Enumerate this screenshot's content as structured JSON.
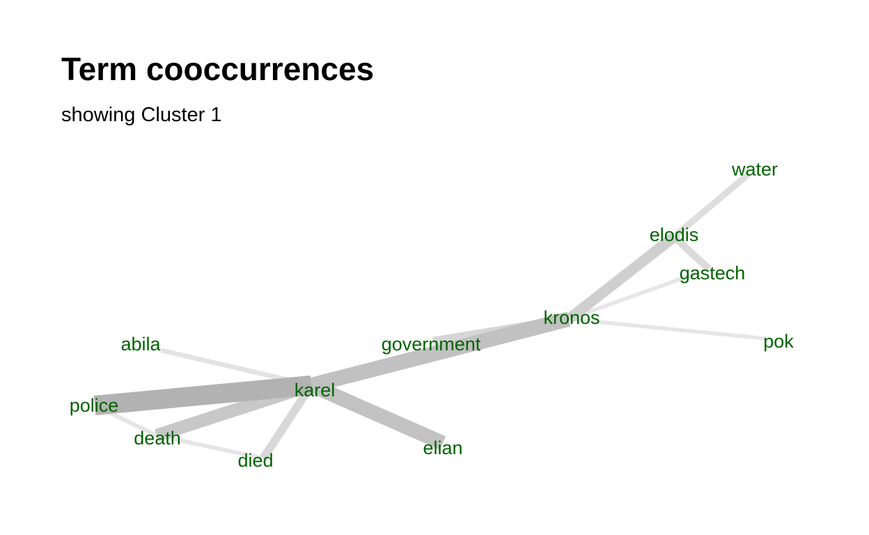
{
  "title": "Term cooccurrences",
  "subtitle": "showing Cluster 1",
  "colors": {
    "label": "#006400",
    "edge": "#bdbdbd"
  },
  "nodes": [
    {
      "id": "water",
      "label": "water"
    },
    {
      "id": "elodis",
      "label": "elodis"
    },
    {
      "id": "gastech",
      "label": "gastech"
    },
    {
      "id": "kronos",
      "label": "kronos"
    },
    {
      "id": "pok",
      "label": "pok"
    },
    {
      "id": "government",
      "label": "government"
    },
    {
      "id": "abila",
      "label": "abila"
    },
    {
      "id": "karel",
      "label": "karel"
    },
    {
      "id": "police",
      "label": "police"
    },
    {
      "id": "death",
      "label": "death"
    },
    {
      "id": "died",
      "label": "died"
    },
    {
      "id": "elian",
      "label": "elian"
    }
  ],
  "edges": [
    {
      "source": "karel",
      "target": "police",
      "strength": 1.0
    },
    {
      "source": "karel",
      "target": "kronos",
      "strength": 0.75
    },
    {
      "source": "karel",
      "target": "elian",
      "strength": 0.72
    },
    {
      "source": "karel",
      "target": "death",
      "strength": 0.62
    },
    {
      "source": "kronos",
      "target": "elodis",
      "strength": 0.5
    },
    {
      "source": "kronos",
      "target": "government",
      "strength": 0.38
    },
    {
      "source": "karel",
      "target": "died",
      "strength": 0.35
    },
    {
      "source": "elodis",
      "target": "gastech",
      "strength": 0.3
    },
    {
      "source": "elodis",
      "target": "water",
      "strength": 0.25
    },
    {
      "source": "karel",
      "target": "abila",
      "strength": 0.15
    },
    {
      "source": "police",
      "target": "death",
      "strength": 0.12
    },
    {
      "source": "death",
      "target": "died",
      "strength": 0.12
    },
    {
      "source": "kronos",
      "target": "gastech",
      "strength": 0.1
    },
    {
      "source": "kronos",
      "target": "pok",
      "strength": 0.1
    }
  ]
}
